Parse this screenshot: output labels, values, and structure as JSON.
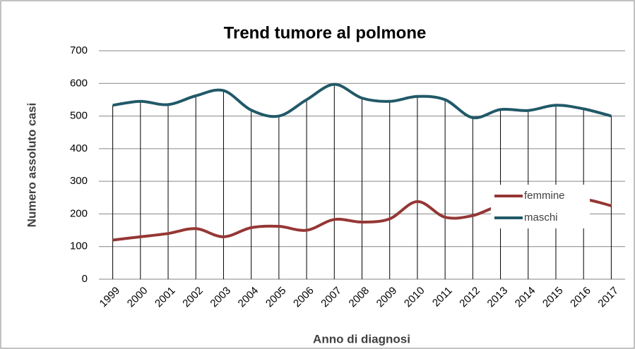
{
  "chart_data": {
    "type": "line",
    "title": "Trend tumore al polmone",
    "x_label": "Anno di diagnosi",
    "y_label": "Numero assoluto casi",
    "categories": [
      "1999",
      "2000",
      "2001",
      "2002",
      "2003",
      "2004",
      "2005",
      "2006",
      "2007",
      "2008",
      "2009",
      "2010",
      "2011",
      "2012",
      "2013",
      "2014",
      "2015",
      "2016",
      "2017"
    ],
    "series": [
      {
        "name": "femmine",
        "color": "#953735",
        "values": [
          120,
          130,
          140,
          155,
          130,
          158,
          162,
          150,
          183,
          175,
          185,
          238,
          190,
          195,
          225,
          220,
          237,
          245,
          225
        ]
      },
      {
        "name": "maschi",
        "color": "#215968",
        "values": [
          533,
          545,
          535,
          562,
          578,
          518,
          500,
          550,
          597,
          555,
          545,
          560,
          550,
          495,
          520,
          517,
          533,
          522,
          500
        ]
      }
    ],
    "ylim": [
      0,
      700
    ],
    "yticks": [
      0,
      100,
      200,
      300,
      400,
      500,
      600,
      700
    ],
    "grid": true,
    "smooth": true,
    "legend": "lower right"
  }
}
